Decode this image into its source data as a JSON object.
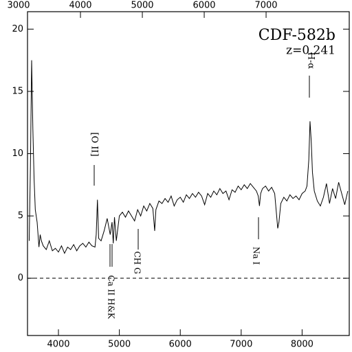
{
  "chart_data": {
    "type": "line",
    "title": "CDF-582b",
    "subtitle": "z=0.241",
    "annotations": [
      "[O II]",
      "Ca II H&K",
      "CH G",
      "Na I",
      "H-α"
    ],
    "color": "#000000",
    "xlim": [
      3492,
      8774
    ],
    "xticks": [
      4000,
      5000,
      6000,
      7000,
      8000
    ],
    "x2lim": [
      3144,
      8344
    ],
    "x2ticks": [
      3000,
      4000,
      5000,
      6000,
      7000
    ],
    "ylim": [
      -4.6,
      21.4
    ],
    "yticks": [
      0,
      5,
      10,
      15,
      20
    ],
    "x": [
      3520,
      3540,
      3560,
      3580,
      3600,
      3620,
      3650,
      3680,
      3700,
      3720,
      3750,
      3800,
      3850,
      3900,
      3950,
      4000,
      4050,
      4100,
      4150,
      4200,
      4250,
      4300,
      4350,
      4400,
      4450,
      4500,
      4550,
      4600,
      4620,
      4640,
      4660,
      4700,
      4750,
      4800,
      4850,
      4880,
      4900,
      4920,
      4950,
      5000,
      5050,
      5100,
      5150,
      5200,
      5250,
      5300,
      5350,
      5400,
      5450,
      5500,
      5550,
      5580,
      5600,
      5650,
      5700,
      5750,
      5800,
      5850,
      5900,
      5950,
      6000,
      6050,
      6100,
      6150,
      6200,
      6250,
      6300,
      6350,
      6400,
      6450,
      6500,
      6550,
      6600,
      6650,
      6700,
      6750,
      6800,
      6850,
      6900,
      6950,
      7000,
      7050,
      7100,
      7150,
      7200,
      7250,
      7280,
      7300,
      7320,
      7350,
      7400,
      7450,
      7500,
      7550,
      7600,
      7620,
      7650,
      7700,
      7750,
      7800,
      7850,
      7900,
      7950,
      8000,
      8050,
      8080,
      8110,
      8130,
      8150,
      8170,
      8200,
      8250,
      8300,
      8350,
      8400,
      8450,
      8500,
      8550,
      8600,
      8650,
      8700,
      8750
    ],
    "values": [
      3,
      9,
      17.5,
      12,
      8,
      5.5,
      4.5,
      2.5,
      3.5,
      3.0,
      2.6,
      2.3,
      3.0,
      2.2,
      2.4,
      2.1,
      2.6,
      2.0,
      2.5,
      2.3,
      2.7,
      2.2,
      2.6,
      2.8,
      2.5,
      2.9,
      2.6,
      2.5,
      3.5,
      6.3,
      3.2,
      3.0,
      3.8,
      4.8,
      3.5,
      4.5,
      2.8,
      4.9,
      3.0,
      5.0,
      5.3,
      4.9,
      5.4,
      5.0,
      4.6,
      5.5,
      5.0,
      5.8,
      5.4,
      6.0,
      5.6,
      3.8,
      5.5,
      6.2,
      6.0,
      6.4,
      6.1,
      6.6,
      5.8,
      6.3,
      6.5,
      6.1,
      6.7,
      6.4,
      6.8,
      6.5,
      6.9,
      6.6,
      5.9,
      6.8,
      6.5,
      7.0,
      6.7,
      7.2,
      6.8,
      7.0,
      6.3,
      7.1,
      6.9,
      7.4,
      7.1,
      7.5,
      7.2,
      7.6,
      7.3,
      7.0,
      6.6,
      5.8,
      6.8,
      7.2,
      7.4,
      7.0,
      7.3,
      6.8,
      4.0,
      4.5,
      6.0,
      6.5,
      6.2,
      6.7,
      6.4,
      6.6,
      6.3,
      6.8,
      7.0,
      7.4,
      9.5,
      12.6,
      11.0,
      8.5,
      7.0,
      6.2,
      5.8,
      6.5,
      7.6,
      6.0,
      7.2,
      6.4,
      7.7,
      6.8,
      5.9,
      7.0
    ]
  }
}
